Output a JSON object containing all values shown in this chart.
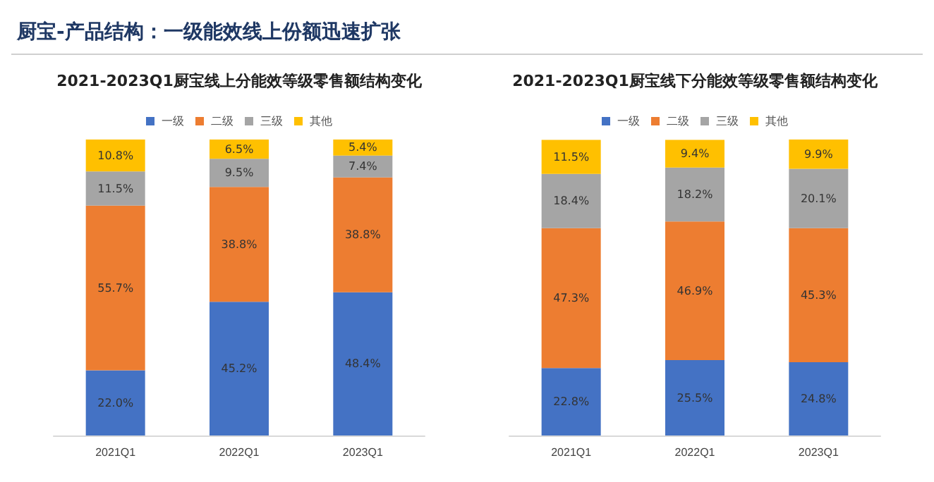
{
  "chart_data": [
    {
      "type": "other",
      "title": "厨宝-产品结构：一级能效线上份额迅速扩张"
    },
    {
      "type": "bar",
      "title": "2021-2023Q1厨宝线上分能效等级零售额结构变化",
      "categories": [
        "2021Q1",
        "2022Q1",
        "2023Q1"
      ],
      "stacked": true,
      "legend": "top",
      "series": [
        {
          "name": "一级",
          "color": "#4472c4",
          "values": [
            22.0,
            45.2,
            48.4
          ],
          "value_labels": [
            "22.0%",
            "45.2%",
            "48.4%"
          ]
        },
        {
          "name": "二级",
          "color": "#ed7d31",
          "values": [
            55.7,
            38.8,
            38.8
          ],
          "value_labels": [
            "55.7%",
            "38.8%",
            "38.8%"
          ]
        },
        {
          "name": "三级",
          "color": "#a5a5a5",
          "values": [
            11.5,
            9.5,
            7.4
          ],
          "value_labels": [
            "11.5%",
            "9.5%",
            "7.4%"
          ]
        },
        {
          "name": "其他",
          "color": "#ffc000",
          "values": [
            10.8,
            6.5,
            5.4
          ],
          "value_labels": [
            "10.8%",
            "6.5%",
            "5.4%"
          ]
        }
      ]
    },
    {
      "type": "bar",
      "title": "2021-2023Q1厨宝线下分能效等级零售额结构变化",
      "categories": [
        "2021Q1",
        "2022Q1",
        "2023Q1"
      ],
      "stacked": true,
      "legend": "top",
      "series": [
        {
          "name": "一级",
          "color": "#4472c4",
          "values": [
            22.8,
            25.5,
            24.8
          ],
          "value_labels": [
            "22.8%",
            "25.5%",
            "24.8%"
          ]
        },
        {
          "name": "二级",
          "color": "#ed7d31",
          "values": [
            47.3,
            46.9,
            45.3
          ],
          "value_labels": [
            "47.3%",
            "46.9%",
            "45.3%"
          ]
        },
        {
          "name": "三级",
          "color": "#a5a5a5",
          "values": [
            18.4,
            18.2,
            20.1
          ],
          "value_labels": [
            "18.4%",
            "18.2%",
            "20.1%"
          ]
        },
        {
          "name": "其他",
          "color": "#ffc000",
          "values": [
            11.5,
            9.4,
            9.9
          ],
          "value_labels": [
            "11.5%",
            "9.4%",
            "9.9%"
          ]
        }
      ]
    }
  ]
}
